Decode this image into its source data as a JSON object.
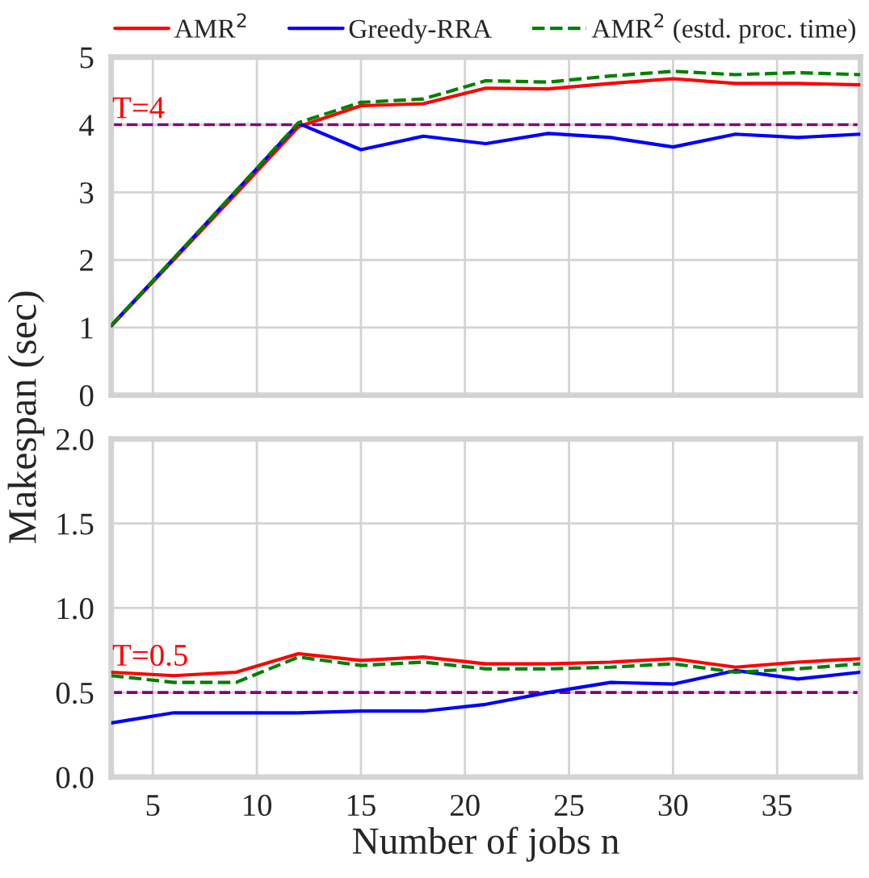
{
  "chart_data": [
    {
      "type": "line",
      "ylabel": "Makespan (sec)",
      "x": [
        3,
        6,
        9,
        12,
        15,
        18,
        21,
        24,
        27,
        30,
        33,
        36,
        39
      ],
      "xlim": [
        3,
        39
      ],
      "xticks": [
        5,
        10,
        15,
        20,
        25,
        30,
        35
      ],
      "ylim": [
        0,
        5
      ],
      "yticks": [
        0,
        1,
        2,
        3,
        4,
        5
      ],
      "tick_labels": "y",
      "grid": true,
      "legend": "top",
      "marker": "none",
      "series": [
        {
          "name": "AMR$^{2}$",
          "color": "#ff0000",
          "line_style": "solid",
          "values": [
            1.02,
            2.0,
            2.98,
            3.97,
            4.28,
            4.31,
            4.54,
            4.53,
            4.61,
            4.68,
            4.61,
            4.61,
            4.59
          ]
        },
        {
          "name": "Greedy-RRA",
          "color": "#0000ff",
          "line_style": "solid",
          "values": [
            1.03,
            2.02,
            3.02,
            4.02,
            3.63,
            3.83,
            3.72,
            3.87,
            3.81,
            3.67,
            3.86,
            3.81,
            3.86
          ]
        },
        {
          "name": "AMR$^{2}$ (estd. proc. time)",
          "color": "#008000",
          "line_style": "dashed",
          "values": [
            1.03,
            2.02,
            3.02,
            4.03,
            4.33,
            4.38,
            4.65,
            4.63,
            4.72,
            4.79,
            4.74,
            4.77,
            4.74
          ]
        }
      ],
      "ref_lines": [
        {
          "axis": "y",
          "value": 4,
          "label": "T=4",
          "color": "#800080",
          "line_style": "dashed"
        }
      ]
    },
    {
      "type": "line",
      "xlabel": "Number of jobs n",
      "x": [
        3,
        6,
        9,
        12,
        15,
        18,
        21,
        24,
        27,
        30,
        33,
        36,
        39
      ],
      "xlim": [
        3,
        39
      ],
      "xticks": [
        5,
        10,
        15,
        20,
        25,
        30,
        35
      ],
      "ylim": [
        0,
        2
      ],
      "yticks": [
        {
          "value": 0,
          "label": "0.0"
        },
        0.5,
        {
          "value": 1,
          "label": "1.0"
        },
        1.5,
        {
          "value": 2,
          "label": "2.0"
        }
      ],
      "grid": true,
      "marker": "none",
      "series": [
        {
          "color": "#ff0000",
          "line_style": "solid",
          "values": [
            0.62,
            0.6,
            0.62,
            0.73,
            0.69,
            0.71,
            0.67,
            0.67,
            0.68,
            0.7,
            0.65,
            0.68,
            0.7
          ]
        },
        {
          "color": "#0000ff",
          "line_style": "solid",
          "values": [
            0.32,
            0.38,
            0.38,
            0.38,
            0.39,
            0.39,
            0.43,
            0.5,
            0.56,
            0.55,
            0.63,
            0.58,
            0.62
          ]
        },
        {
          "color": "#008000",
          "line_style": "dashed",
          "values": [
            0.6,
            0.56,
            0.56,
            0.71,
            0.66,
            0.68,
            0.64,
            0.64,
            0.65,
            0.67,
            0.62,
            0.64,
            0.67
          ]
        }
      ],
      "ref_lines": [
        {
          "axis": "y",
          "value": 0.5,
          "label": "T=0.5",
          "color": "#800080",
          "line_style": "dashed"
        }
      ]
    }
  ]
}
